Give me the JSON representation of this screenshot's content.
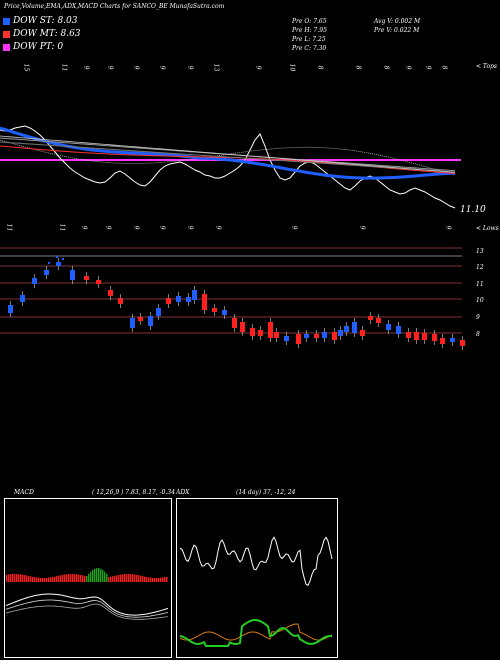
{
  "header": {
    "title": "Price,Volume,EMA,ADX,MACD Charts for SANCO_BE MunafaSutra.com"
  },
  "legend": [
    {
      "label": "DOW ST: 8.03",
      "color": "#1f5fff"
    },
    {
      "label": "DOW MT: 8.63",
      "color": "#ff3030"
    },
    {
      "label": "DOW PT: 0",
      "color": "#ff33ff"
    }
  ],
  "ohlc": {
    "open": "Pre O: 7.65",
    "high": "Pre H: 7.95",
    "low": "Pre L: 7.25",
    "close": "Pre C: 7.30",
    "avg_volume": "Avg V: 0.002 M",
    "prev_volume": "Pre V: 0.022 M"
  },
  "upper_chart": {
    "top_label": "< Tops",
    "bottom_label": "< Lows",
    "last_price_label": "11.10",
    "top_ticks": [
      "15",
      "11",
      "9",
      "9",
      "9",
      "9",
      "9",
      "13",
      "9",
      "10",
      "8",
      "8",
      "8",
      "9",
      "9",
      "8"
    ],
    "bottom_ticks": [
      "11",
      "11",
      "9",
      "9",
      "9",
      "9",
      "9",
      "9",
      "9",
      "9",
      "9"
    ]
  },
  "price_chart": {
    "axis_labels": [
      "13",
      "12",
      "11",
      "10",
      "9",
      "8"
    ]
  },
  "macd": {
    "title": "MACD",
    "params": "( 12,26,9 ) 7.83, 8.17, -0.34"
  },
  "adx": {
    "title": "ADX",
    "params": "(14 day) 37, -12, 24"
  },
  "chart_data": {
    "type": "line",
    "series": [
      {
        "name": "DOW ST",
        "values": [
          8.03
        ]
      },
      {
        "name": "DOW MT",
        "values": [
          8.63
        ]
      },
      {
        "name": "DOW PT",
        "values": [
          0
        ]
      }
    ]
  },
  "colors": {
    "up": "#1f5fff",
    "down": "#ff2020",
    "macd_hist": "#ff2020",
    "macd_pos": "#1aa61a",
    "adx_plus": "#22cc22",
    "adx_minus": "#d97a10",
    "pink_line": "#ff33ff"
  }
}
